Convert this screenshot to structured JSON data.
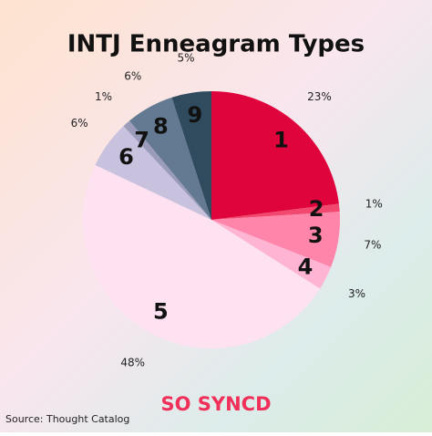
{
  "chart_data": {
    "type": "pie",
    "title": "INTJ Enneagram Types",
    "categories": [
      "1",
      "2",
      "3",
      "4",
      "5",
      "6",
      "7",
      "8",
      "9"
    ],
    "values": [
      23,
      1,
      7,
      3,
      48,
      6,
      1,
      6,
      5
    ],
    "value_labels": [
      "23%",
      "1%",
      "7%",
      "3%",
      "48%",
      "6%",
      "1%",
      "6%",
      "5%"
    ],
    "colors": [
      "#e0043c",
      "#f2486f",
      "#ff86aa",
      "#ffb4d4",
      "#ffe2f2",
      "#c9c2de",
      "#9b9cba",
      "#637a92",
      "#2f4b5d"
    ]
  },
  "brand": "SO SYNCD",
  "source": "Source: Thought Catalog"
}
